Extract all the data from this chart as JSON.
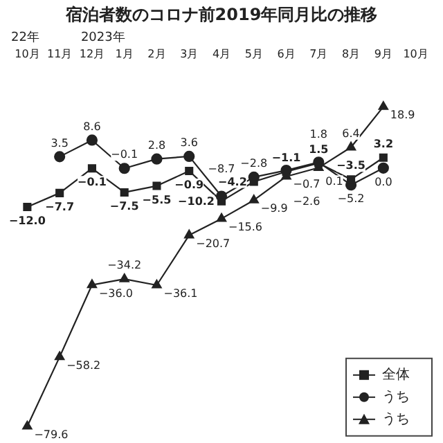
{
  "chart_data": {
    "type": "line",
    "title": "宿泊者数のコロナ前2019年同月比の推移",
    "categories": [
      "10月",
      "11月",
      "12月",
      "1月",
      "2月",
      "3月",
      "4月",
      "5月",
      "6月",
      "7月",
      "8月",
      "9月",
      "10月"
    ],
    "annotations": [
      "22年",
      "2023年"
    ],
    "series": [
      {
        "name": "全体",
        "color": "#222222",
        "marker": "square",
        "values": [
          -12.0,
          -7.7,
          -0.1,
          -7.5,
          -5.5,
          -0.9,
          -10.2,
          -4.2,
          -1.1,
          1.5,
          -3.5,
          3.2,
          null
        ],
        "value_labels": [
          "−12.0",
          "−7.7",
          "−0.1",
          "−7.5",
          "−5.5",
          "−0.9",
          "−10.2",
          "−4.2",
          "−1.1",
          "1.5",
          "−3.5",
          "3.2",
          null
        ]
      },
      {
        "name": "うち",
        "color": "#222222",
        "marker": "circle",
        "values": [
          null,
          3.5,
          8.6,
          -0.1,
          2.8,
          3.6,
          -8.7,
          -2.8,
          -0.7,
          1.8,
          -5.2,
          0.0,
          null
        ],
        "value_labels": [
          null,
          "3.5",
          "8.6",
          "−0.1",
          "2.8",
          "3.6",
          "−8.7",
          "−2.8",
          "−0.7",
          "1.8",
          "−5.2",
          "0.0",
          null
        ]
      },
      {
        "name": "うち",
        "color": "#222222",
        "marker": "triangle",
        "values": [
          -79.6,
          -58.2,
          -36.0,
          -34.2,
          -36.1,
          -20.7,
          -15.6,
          -9.9,
          -2.6,
          0.1,
          6.4,
          18.9,
          null
        ],
        "value_labels": [
          "−79.6",
          "−58.2",
          "−36.0",
          "−34.2",
          "−36.1",
          "−20.7",
          "−15.6",
          "−9.9",
          "−2.6",
          "0.1",
          "6.4",
          "18.9",
          null
        ]
      }
    ],
    "legend": "bottom right"
  }
}
